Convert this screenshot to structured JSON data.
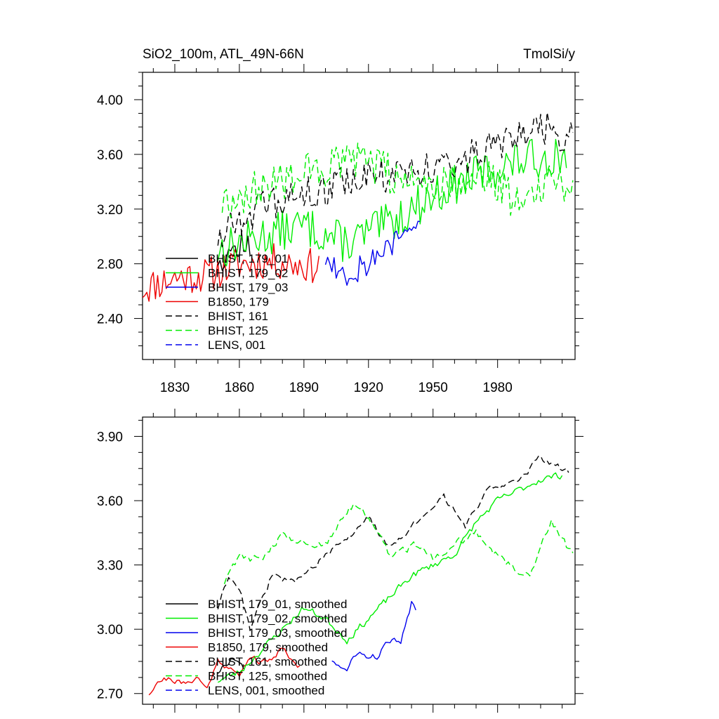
{
  "top_panel": {
    "title_left": "SiO2_100m, ATL_49N-66N",
    "title_right": "TmolSi/y"
  },
  "chart_data": [
    {
      "type": "line",
      "panel": "top",
      "title": "SiO2_100m, ATL_49N-66N",
      "units": "TmolSi/y",
      "xlim": [
        1815,
        2016
      ],
      "ylim": [
        2.1,
        4.2
      ],
      "x_ticks": [
        1830,
        1860,
        1890,
        1920,
        1950,
        1980
      ],
      "x_tick_labels": [
        "1830",
        "1860",
        "1890",
        "1920",
        "1950",
        "1980"
      ],
      "y_ticks": [
        2.4,
        2.8,
        3.2,
        3.6,
        4.0
      ],
      "y_tick_labels": [
        "2.40",
        "2.80",
        "3.20",
        "3.60",
        "4.00"
      ],
      "legend": [
        {
          "label": "BHIST, 179_01",
          "color": "#000000",
          "dash": "solid"
        },
        {
          "label": "BHIST, 179_02",
          "color": "#00ee00",
          "dash": "solid"
        },
        {
          "label": "BHIST, 179_03",
          "color": "#0000ee",
          "dash": "solid"
        },
        {
          "label": "B1850, 179",
          "color": "#ee0000",
          "dash": "solid"
        },
        {
          "label": "BHIST, 161",
          "color": "#000000",
          "dash": "dashed"
        },
        {
          "label": "BHIST, 125",
          "color": "#00ee00",
          "dash": "dashed"
        },
        {
          "label": "LENS, 001",
          "color": "#0000ee",
          "dash": "dashed"
        }
      ],
      "series": [
        {
          "name": "B1850, 179",
          "color": "#ee0000",
          "dash": "solid",
          "annual": true,
          "x_start": 1815,
          "x_end": 1897,
          "knots": [
            [
              1815,
              2.62
            ],
            [
              1830,
              2.7
            ],
            [
              1845,
              2.72
            ],
            [
              1860,
              2.8
            ],
            [
              1875,
              2.82
            ],
            [
              1897,
              2.78
            ]
          ],
          "amp": 0.13,
          "seed": 11
        },
        {
          "name": "BHIST, 179_01",
          "color": "#000000",
          "dash": "solid",
          "annual": true,
          "x_start": 1850,
          "x_end": 1865,
          "knots": [
            [
              1850,
              2.85
            ],
            [
              1865,
              2.95
            ]
          ],
          "amp": 0.12,
          "seed": 12
        },
        {
          "name": "BHIST, 179_02",
          "color": "#00ee00",
          "dash": "solid",
          "annual": true,
          "x_start": 1850,
          "x_end": 2012,
          "knots": [
            [
              1850,
              2.9
            ],
            [
              1870,
              3.0
            ],
            [
              1890,
              3.08
            ],
            [
              1910,
              2.95
            ],
            [
              1930,
              3.1
            ],
            [
              1950,
              3.3
            ],
            [
              1970,
              3.45
            ],
            [
              1990,
              3.55
            ],
            [
              2012,
              3.6
            ]
          ],
          "amp": 0.15,
          "seed": 13
        },
        {
          "name": "BHIST, 179_03",
          "color": "#0000ee",
          "dash": "solid",
          "annual": true,
          "x_start": 1900,
          "x_end": 1944,
          "knots": [
            [
              1900,
              2.85
            ],
            [
              1910,
              2.72
            ],
            [
              1920,
              2.82
            ],
            [
              1930,
              2.92
            ],
            [
              1944,
              3.1
            ]
          ],
          "amp": 0.11,
          "seed": 14
        },
        {
          "name": "BHIST, 161",
          "color": "#000000",
          "dash": "dashed",
          "annual": true,
          "x_start": 1850,
          "x_end": 2015,
          "knots": [
            [
              1850,
              3.0
            ],
            [
              1860,
              3.15
            ],
            [
              1880,
              3.25
            ],
            [
              1900,
              3.35
            ],
            [
              1920,
              3.45
            ],
            [
              1940,
              3.45
            ],
            [
              1960,
              3.55
            ],
            [
              1980,
              3.65
            ],
            [
              2000,
              3.8
            ],
            [
              2015,
              3.7
            ]
          ],
          "amp": 0.13,
          "seed": 15
        },
        {
          "name": "BHIST, 125",
          "color": "#00ee00",
          "dash": "dashed",
          "annual": true,
          "x_start": 1852,
          "x_end": 2015,
          "knots": [
            [
              1852,
              3.25
            ],
            [
              1870,
              3.35
            ],
            [
              1885,
              3.45
            ],
            [
              1915,
              3.55
            ],
            [
              1940,
              3.4
            ],
            [
              1960,
              3.4
            ],
            [
              1975,
              3.45
            ],
            [
              1990,
              3.25
            ],
            [
              2005,
              3.45
            ],
            [
              2015,
              3.35
            ]
          ],
          "amp": 0.15,
          "seed": 16
        }
      ]
    },
    {
      "type": "line",
      "panel": "bottom",
      "xlim": [
        1815,
        2016
      ],
      "ylim": [
        2.65,
        3.99
      ],
      "x_ticks": [
        1830,
        1860,
        1890,
        1920,
        1950,
        1980
      ],
      "y_ticks": [
        2.7,
        3.0,
        3.3,
        3.6,
        3.9
      ],
      "y_tick_labels": [
        "2.70",
        "3.00",
        "3.30",
        "3.60",
        "3.90"
      ],
      "legend": [
        {
          "label": "BHIST, 179_01, smoothed",
          "color": "#000000",
          "dash": "solid"
        },
        {
          "label": "BHIST, 179_02, smoothed",
          "color": "#00ee00",
          "dash": "solid"
        },
        {
          "label": "BHIST, 179_03, smoothed",
          "color": "#0000ee",
          "dash": "solid"
        },
        {
          "label": "B1850, 179, smoothed",
          "color": "#ee0000",
          "dash": "solid"
        },
        {
          "label": "BHIST, 161, smoothed",
          "color": "#000000",
          "dash": "dashed"
        },
        {
          "label": "BHIST, 125, smoothed",
          "color": "#00ee00",
          "dash": "dashed"
        },
        {
          "label": "LENS, 001, smoothed",
          "color": "#0000ee",
          "dash": "dashed"
        }
      ],
      "series": [
        {
          "name": "B1850, 179, smoothed",
          "color": "#ee0000",
          "dash": "solid",
          "x_start": 1818,
          "x_end": 1888,
          "knots": [
            [
              1818,
              2.7
            ],
            [
              1822,
              2.76
            ],
            [
              1828,
              2.77
            ],
            [
              1835,
              2.74
            ],
            [
              1840,
              2.78
            ],
            [
              1845,
              2.72
            ],
            [
              1850,
              2.86
            ],
            [
              1855,
              2.82
            ],
            [
              1860,
              2.78
            ],
            [
              1865,
              2.88
            ],
            [
              1870,
              2.84
            ],
            [
              1875,
              2.86
            ],
            [
              1880,
              2.92
            ],
            [
              1885,
              2.85
            ],
            [
              1888,
              2.82
            ]
          ],
          "amp": 0.022,
          "seed": 21
        },
        {
          "name": "BHIST, 179_01, smoothed",
          "color": "#000000",
          "dash": "solid",
          "x_start": 1850,
          "x_end": 1862,
          "knots": [
            [
              1850,
              2.8
            ],
            [
              1856,
              2.86
            ],
            [
              1862,
              2.82
            ]
          ],
          "amp": 0.02,
          "seed": 22
        },
        {
          "name": "BHIST, 179_02, smoothed",
          "color": "#00ee00",
          "dash": "solid",
          "x_start": 1850,
          "x_end": 2010,
          "knots": [
            [
              1850,
              2.76
            ],
            [
              1860,
              2.8
            ],
            [
              1870,
              2.9
            ],
            [
              1880,
              3.0
            ],
            [
              1890,
              3.1
            ],
            [
              1900,
              3.05
            ],
            [
              1910,
              2.95
            ],
            [
              1920,
              3.05
            ],
            [
              1930,
              3.15
            ],
            [
              1940,
              3.25
            ],
            [
              1950,
              3.3
            ],
            [
              1960,
              3.35
            ],
            [
              1970,
              3.5
            ],
            [
              1980,
              3.6
            ],
            [
              1990,
              3.65
            ],
            [
              2000,
              3.7
            ],
            [
              2010,
              3.72
            ]
          ],
          "amp": 0.025,
          "seed": 23
        },
        {
          "name": "BHIST, 179_03, smoothed",
          "color": "#0000ee",
          "dash": "solid",
          "x_start": 1903,
          "x_end": 1942,
          "knots": [
            [
              1903,
              2.86
            ],
            [
              1910,
              2.8
            ],
            [
              1915,
              2.9
            ],
            [
              1920,
              2.86
            ],
            [
              1925,
              2.88
            ],
            [
              1930,
              2.95
            ],
            [
              1935,
              2.93
            ],
            [
              1940,
              3.12
            ],
            [
              1942,
              3.1
            ]
          ],
          "amp": 0.025,
          "seed": 24
        },
        {
          "name": "BHIST, 161, smoothed",
          "color": "#000000",
          "dash": "dashed",
          "x_start": 1850,
          "x_end": 2013,
          "knots": [
            [
              1850,
              3.1
            ],
            [
              1855,
              3.25
            ],
            [
              1860,
              3.2
            ],
            [
              1865,
              3.0
            ],
            [
              1875,
              3.25
            ],
            [
              1885,
              3.22
            ],
            [
              1895,
              3.3
            ],
            [
              1910,
              3.42
            ],
            [
              1920,
              3.52
            ],
            [
              1930,
              3.38
            ],
            [
              1940,
              3.48
            ],
            [
              1950,
              3.55
            ],
            [
              1955,
              3.62
            ],
            [
              1960,
              3.55
            ],
            [
              1965,
              3.48
            ],
            [
              1975,
              3.65
            ],
            [
              1990,
              3.7
            ],
            [
              2000,
              3.8
            ],
            [
              2010,
              3.75
            ],
            [
              2013,
              3.74
            ]
          ],
          "amp": 0.022,
          "seed": 25
        },
        {
          "name": "BHIST, 125, smoothed",
          "color": "#00ee00",
          "dash": "dashed",
          "x_start": 1853,
          "x_end": 2015,
          "knots": [
            [
              1853,
              3.22
            ],
            [
              1860,
              3.35
            ],
            [
              1870,
              3.32
            ],
            [
              1880,
              3.45
            ],
            [
              1890,
              3.4
            ],
            [
              1900,
              3.4
            ],
            [
              1910,
              3.55
            ],
            [
              1915,
              3.58
            ],
            [
              1925,
              3.45
            ],
            [
              1930,
              3.35
            ],
            [
              1945,
              3.4
            ],
            [
              1950,
              3.32
            ],
            [
              1960,
              3.4
            ],
            [
              1970,
              3.45
            ],
            [
              1985,
              3.3
            ],
            [
              1995,
              3.25
            ],
            [
              2005,
              3.5
            ],
            [
              2010,
              3.42
            ],
            [
              2015,
              3.35
            ]
          ],
          "amp": 0.03,
          "seed": 26
        }
      ]
    }
  ]
}
